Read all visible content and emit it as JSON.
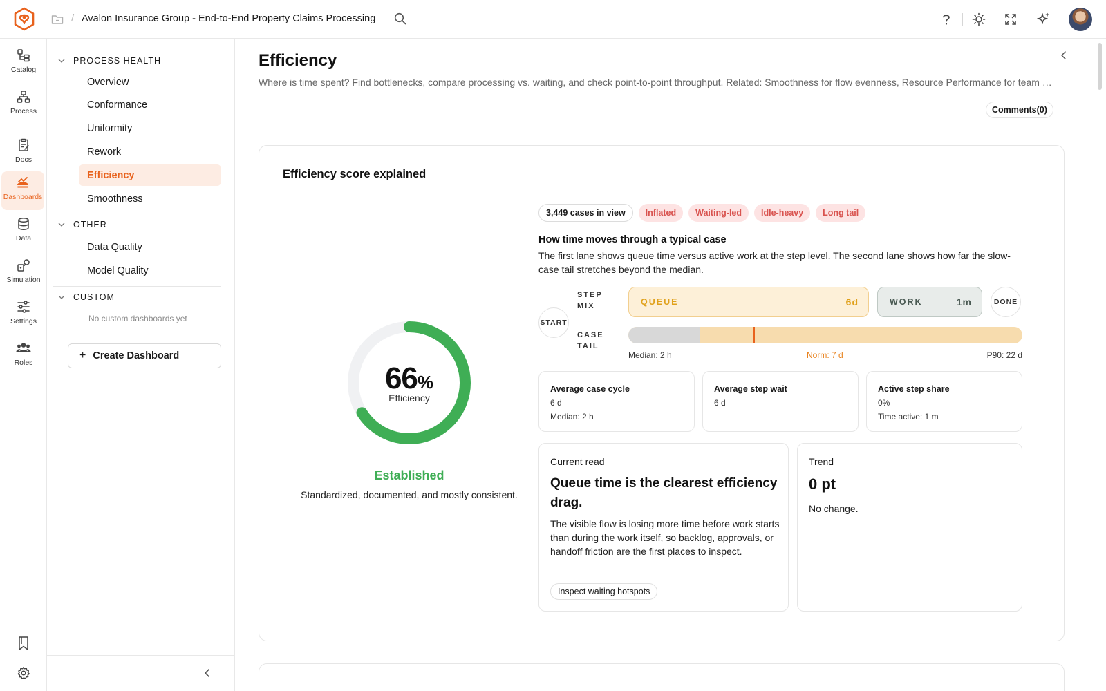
{
  "header": {
    "title": "Avalon Insurance Group - End-to-End Property Claims Processing",
    "separator": "/"
  },
  "rail": {
    "items": [
      {
        "label": "Catalog",
        "icon": "catalog-icon"
      },
      {
        "label": "Process",
        "icon": "process-icon"
      },
      {
        "label": "Docs",
        "icon": "docs-icon"
      },
      {
        "label": "Dashboards",
        "icon": "dashboards-icon"
      },
      {
        "label": "Data",
        "icon": "database-icon"
      },
      {
        "label": "Simulation",
        "icon": "simulation-icon"
      },
      {
        "label": "Settings",
        "icon": "sliders-icon"
      },
      {
        "label": "Roles",
        "icon": "users-icon"
      }
    ],
    "active": "Dashboards"
  },
  "sidebar": {
    "sections": [
      {
        "label": "PROCESS HEALTH",
        "items": [
          "Overview",
          "Conformance",
          "Uniformity",
          "Rework",
          "Efficiency",
          "Smoothness"
        ]
      },
      {
        "label": "OTHER",
        "items": [
          "Data Quality",
          "Model Quality"
        ]
      },
      {
        "label": "CUSTOM",
        "empty_text": "No custom dashboards yet"
      }
    ],
    "active_item": "Efficiency",
    "create_label": "Create Dashboard",
    "create_icon": "+"
  },
  "page": {
    "title": "Efficiency",
    "subtitle": "Where is time spent? Find bottlenecks, compare processing vs. waiting, and check point-to-point throughput. Related: Smoothness for flow evenness, Resource Performance for team workload.",
    "comments_label": "Comments(0)"
  },
  "card": {
    "title": "Efficiency score explained",
    "score": {
      "value": 66,
      "value_text": "66",
      "unit": "%",
      "label": "Efficiency",
      "maturity": "Established",
      "maturity_desc": "Standardized, documented, and mostly consistent.",
      "ring_color": "#3fae55",
      "track_color": "#f0f1f3"
    },
    "chips": {
      "cases": "3,449 cases in view",
      "tags": [
        "Inflated",
        "Waiting-led",
        "Idle-heavy",
        "Long tail"
      ]
    },
    "flow": {
      "title": "How time moves through a typical case",
      "description": "The first lane shows queue time versus active work at the step level. The second lane shows how far the slow-case tail stretches beyond the median.",
      "start_label": "START",
      "done_label": "DONE",
      "step_mix_label": "STEP MIX",
      "case_tail_label": "CASE TAIL",
      "queue": {
        "label": "QUEUE",
        "value": "6d"
      },
      "work": {
        "label": "WORK",
        "value": "1m"
      },
      "tail": {
        "median_label": "Median: 2 h",
        "norm_label": "Norm: 7 d",
        "p90_label": "P90: 22 d",
        "median_fraction": 0.18,
        "norm_fraction": 0.32
      }
    },
    "stats": [
      {
        "title": "Average case cycle",
        "value": "6 d",
        "sub": "Median: 2 h"
      },
      {
        "title": "Average step wait",
        "value": "6 d",
        "sub": ""
      },
      {
        "title": "Active step share",
        "value": "0%",
        "sub": "Time active: 1 m"
      }
    ],
    "current_read": {
      "label": "Current read",
      "headline": "Queue time is the clearest efficiency drag.",
      "description": "The visible flow is losing more time before work starts than during the work itself, so backlog, approvals, or handoff friction are the first places to inspect.",
      "action_label": "Inspect waiting hotspots"
    },
    "trend": {
      "label": "Trend",
      "value": "0 pt",
      "description": "No change."
    }
  },
  "colors": {
    "accent": "#e8621d",
    "green": "#3fae55",
    "queue": "#e0a11b",
    "chip_red": "#d9534f"
  }
}
